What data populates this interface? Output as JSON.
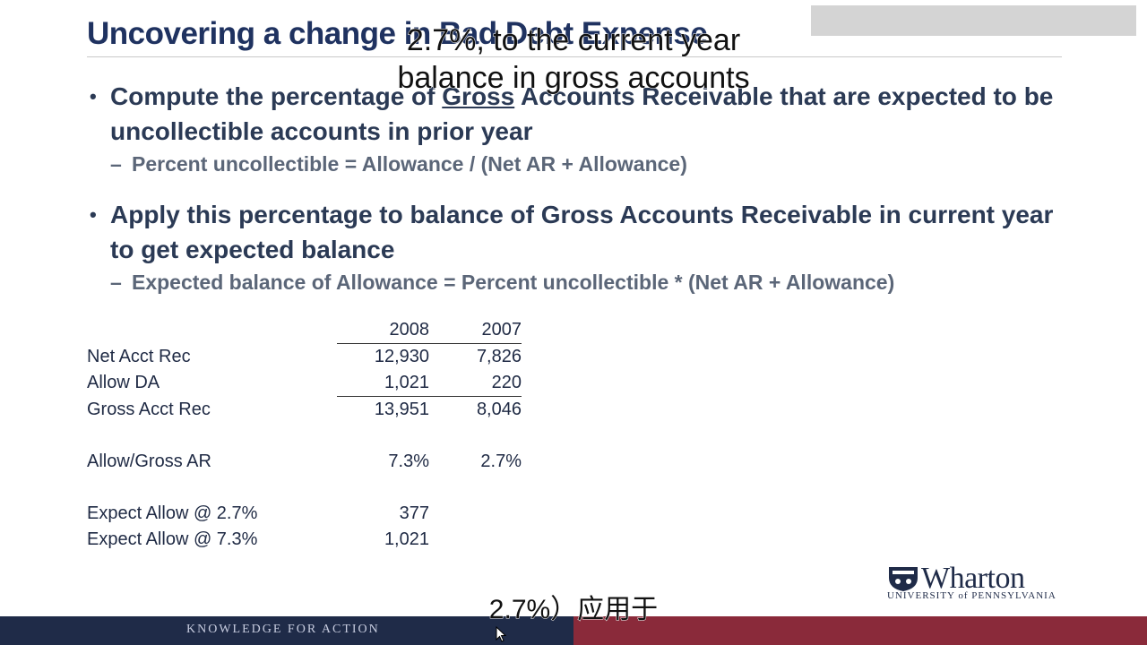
{
  "slide": {
    "title": "Uncovering a change in Bad Debt Expense",
    "bullets": [
      {
        "pre": "Compute the percentage of ",
        "underlined": "Gross",
        "post": " Accounts Receivable that are expected to be uncollectible accounts in prior year",
        "sub": "Percent uncollectible = Allowance / (Net AR + Allowance)"
      },
      {
        "text": "Apply this percentage to balance of Gross Accounts Receivable in current year to get expected balance",
        "sub": "Expected balance of Allowance = Percent uncollectible * (Net AR + Allowance)"
      }
    ]
  },
  "table": {
    "headers": [
      "",
      "2008",
      "2007"
    ],
    "rows": [
      {
        "label": "Net Acct Rec",
        "v2008": "12,930",
        "v2007": "7,826"
      },
      {
        "label": "Allow DA",
        "v2008": "1,021",
        "v2007": "220"
      },
      {
        "label": "Gross Acct Rec",
        "v2008": "13,951",
        "v2007": "8,046"
      },
      {
        "label": "Allow/Gross AR",
        "v2008": "7.3%",
        "v2007": "2.7%"
      },
      {
        "label": "Expect Allow @ 2.7%",
        "v2008": "377",
        "v2007": ""
      },
      {
        "label": "Expect Allow @ 7.3%",
        "v2008": "1,021",
        "v2007": ""
      }
    ]
  },
  "captions": {
    "top_line1": "2.7%, to the current year",
    "top_line2": "balance in gross accounts",
    "bottom": "2.7%）应用于"
  },
  "footer": {
    "tagline": "KNOWLEDGE FOR ACTION"
  },
  "logo": {
    "name": "Wharton",
    "subtitle": "UNIVERSITY of PENNSYLVANIA"
  },
  "colors": {
    "navy": "#1f2b48",
    "maroon": "#8a2a3a",
    "title": "#1f3260"
  }
}
